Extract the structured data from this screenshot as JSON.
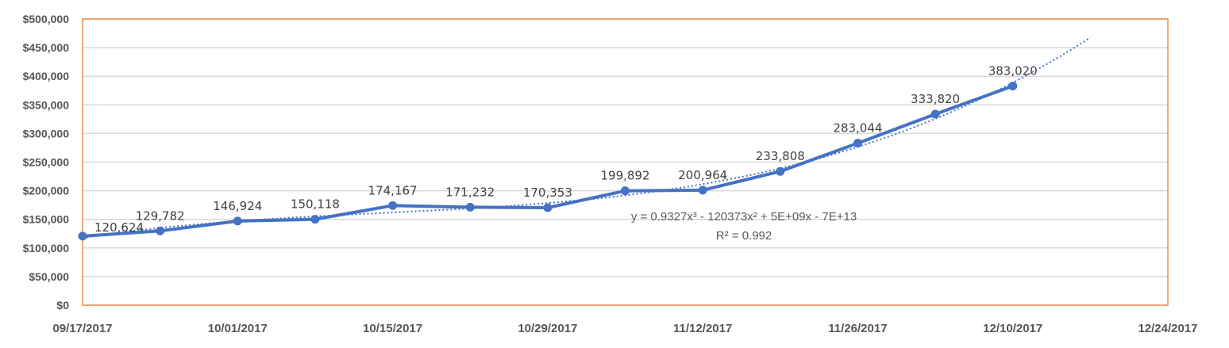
{
  "chart_data": {
    "type": "line",
    "x": [
      "2017-09-17",
      "2017-09-24",
      "2017-10-01",
      "2017-10-08",
      "2017-10-15",
      "2017-10-22",
      "2017-10-29",
      "2017-11-05",
      "2017-11-12",
      "2017-11-19",
      "2017-11-26",
      "2017-12-03",
      "2017-12-10"
    ],
    "values": [
      120624,
      129782,
      146924,
      150118,
      174167,
      171232,
      170353,
      199892,
      200964,
      233808,
      283044,
      333820,
      383020
    ],
    "data_labels": [
      "120,624",
      "129,782",
      "146,924",
      "150,118",
      "174,167",
      "171,232",
      "170,353",
      "199,892",
      "200,964",
      "233,808",
      "283,044",
      "333,820",
      "383,020"
    ],
    "x_tick_labels": [
      "09/17/2017",
      "10/01/2017",
      "10/15/2017",
      "10/29/2017",
      "11/12/2017",
      "11/26/2017",
      "12/10/2017",
      "12/24/2017"
    ],
    "xlim": [
      "2017-09-17",
      "2017-12-24"
    ],
    "y_tick_labels": [
      "$0",
      "$50,000",
      "$100,000",
      "$150,000",
      "$200,000",
      "$250,000",
      "$300,000",
      "$350,000",
      "$400,000",
      "$450,000",
      "$500,000"
    ],
    "ylim": [
      0,
      500000
    ],
    "grid": true,
    "trendline": {
      "type": "polynomial",
      "order": 3,
      "end_x": "2017-12-17",
      "equation": "y = 0.9327x³ - 120373x² + 5E+09x - 7E+13",
      "r_squared": "R² = 0.992"
    },
    "title": "",
    "xlabel": "",
    "ylabel": "",
    "colors": {
      "series": "#4472C4",
      "plot_border": "#ED7D31",
      "grid": "#D9D9D9"
    }
  }
}
